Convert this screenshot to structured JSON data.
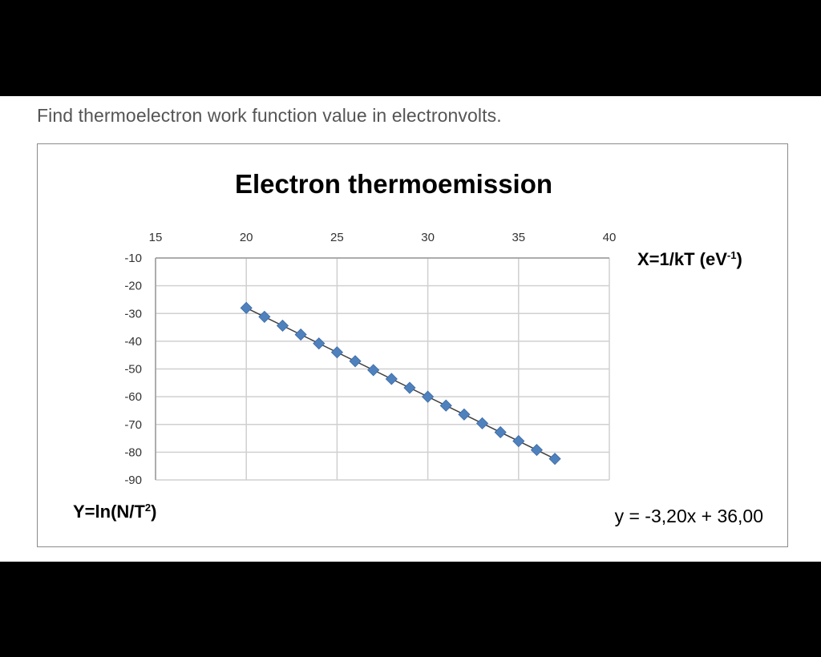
{
  "question": "Find thermoelectron work function value in electronvolts.",
  "chart_data": {
    "type": "scatter",
    "title": "Electron thermoemission",
    "xlabel": "X=1/kT (eV",
    "xlabel_sup": "-1",
    "xlabel_end": ")",
    "ylabel": "Y=ln(N/T",
    "ylabel_sup": "2",
    "ylabel_end": ")",
    "x_axis_position": "top",
    "xlim": [
      15,
      40
    ],
    "ylim": [
      -90,
      -10
    ],
    "x_ticks": [
      "15",
      "20",
      "25",
      "30",
      "35",
      "40"
    ],
    "y_ticks": [
      "-10",
      "-20",
      "-30",
      "-40",
      "-50",
      "-60",
      "-70",
      "-80",
      "-90"
    ],
    "grid": true,
    "marker": "diamond",
    "marker_color": "#4F81BD",
    "trendline": {
      "slope": -3.2,
      "intercept": 36.0,
      "color": "#404040"
    },
    "equation": "y = -3,20x + 36,00",
    "series": [
      {
        "x": [
          20,
          21,
          22,
          23,
          24,
          25,
          26,
          27,
          28,
          29,
          30,
          31,
          32,
          33,
          34,
          35,
          36,
          37
        ],
        "y": [
          -28,
          -31.2,
          -34.4,
          -37.6,
          -40.8,
          -44,
          -47.2,
          -50.4,
          -53.6,
          -56.8,
          -60,
          -63.2,
          -66.4,
          -69.6,
          -72.8,
          -76,
          -79.2,
          -82.4
        ]
      }
    ]
  }
}
